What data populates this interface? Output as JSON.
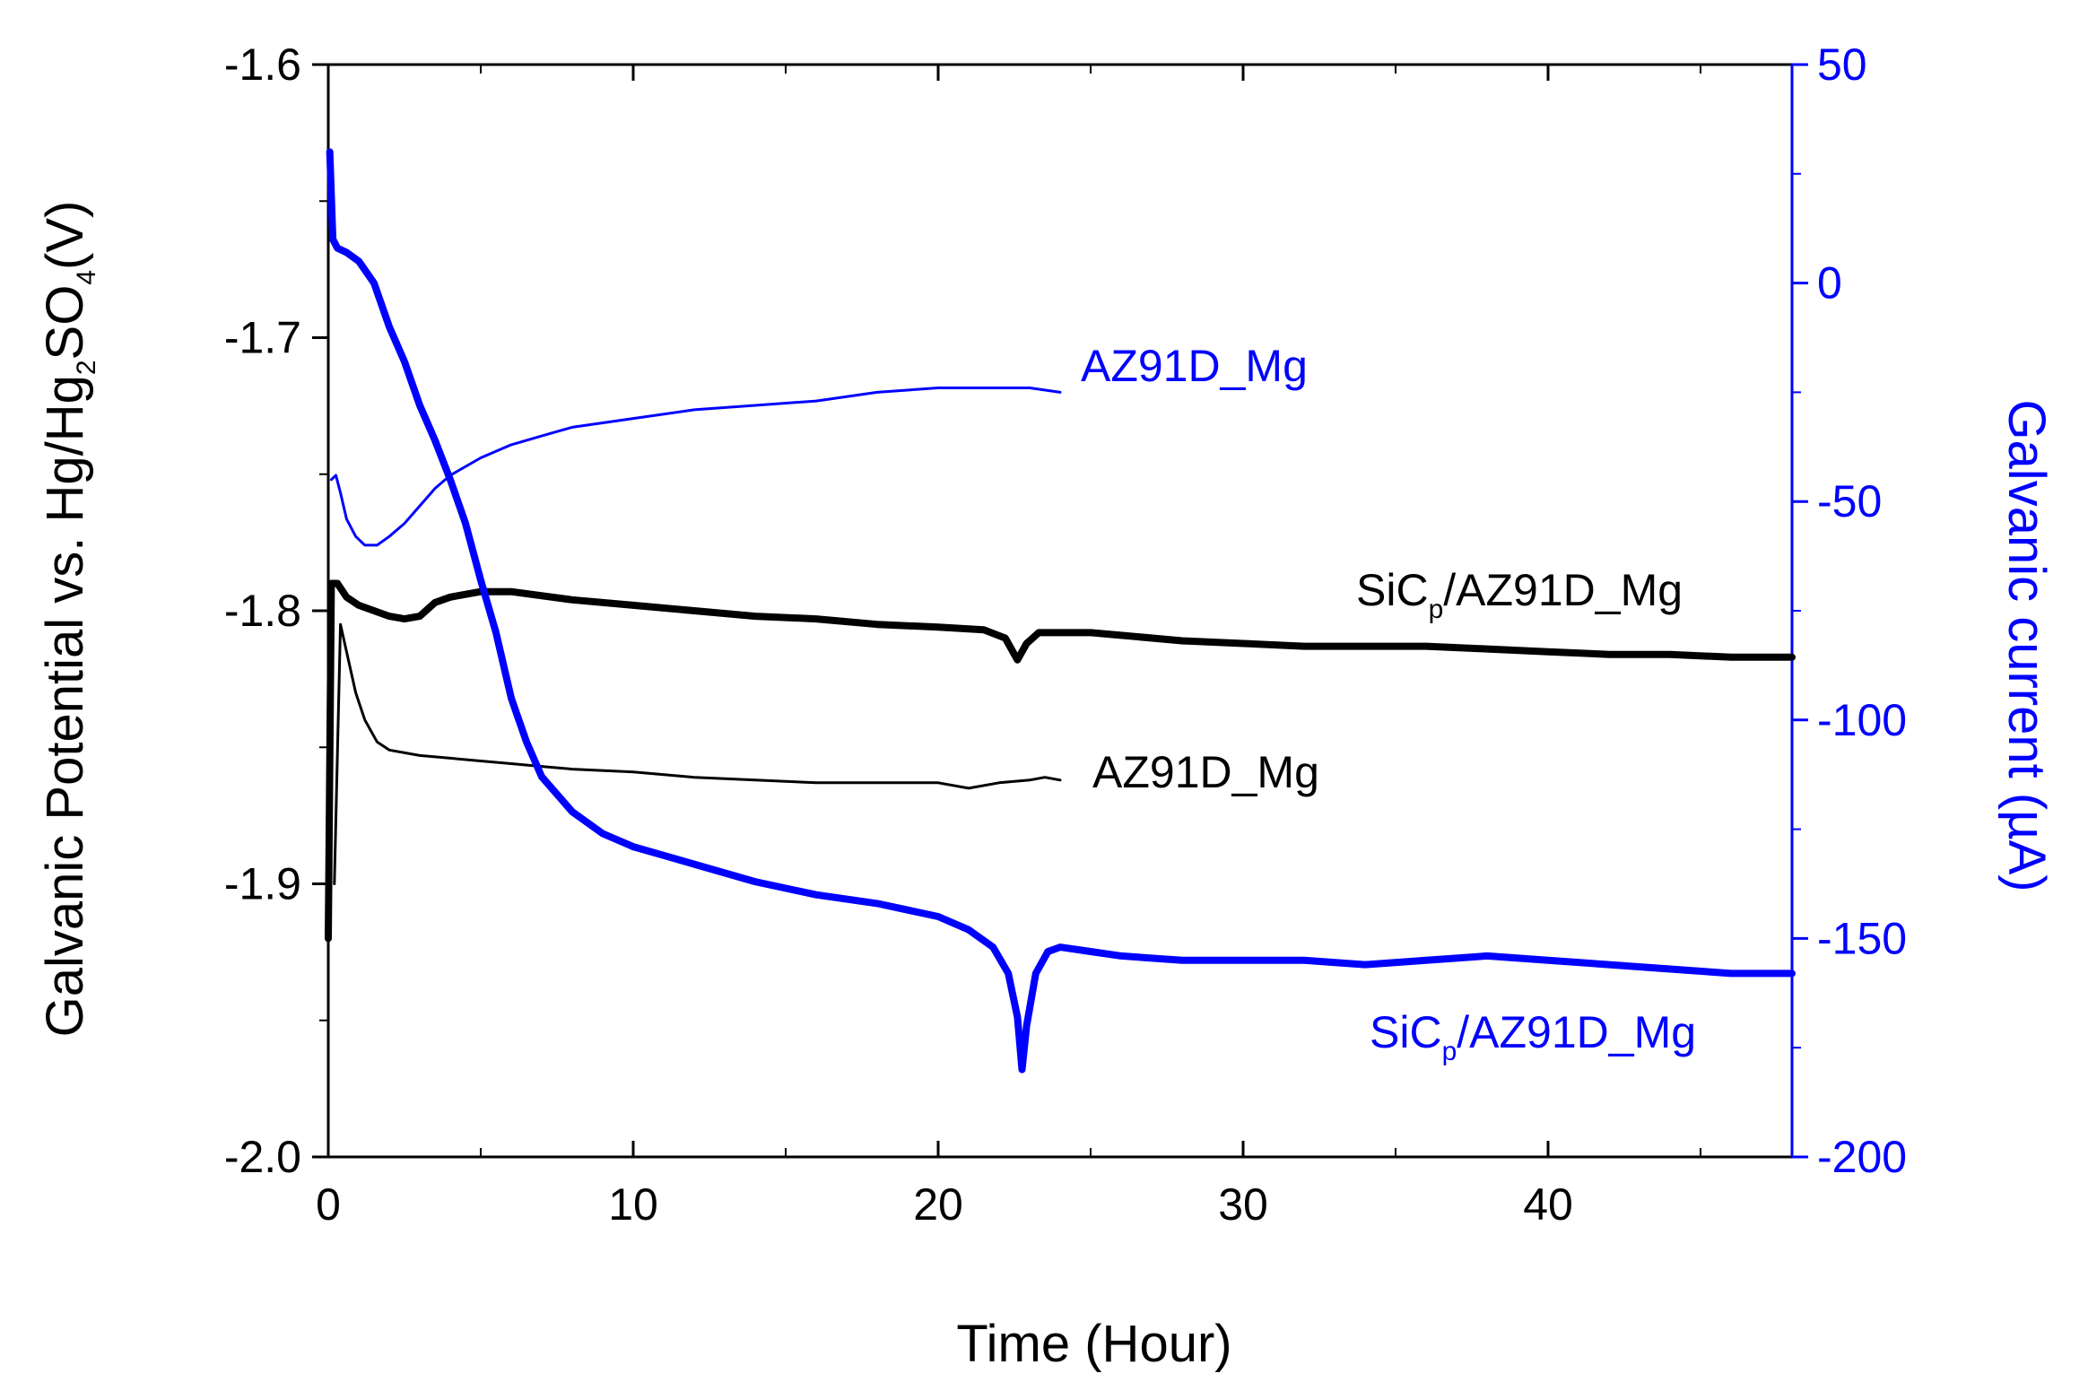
{
  "chart_data": {
    "type": "line",
    "title": "",
    "xlabel": "Time (Hour)",
    "ylabel_left": {
      "prefix": "Galvanic Potential vs. Hg/Hg",
      "sub1": "2",
      "mid": "SO",
      "sub2": "4",
      "suffix": "(V)"
    },
    "ylabel_right": "Galvanic current (µA)",
    "xlim": [
      0,
      48
    ],
    "ylim_left": [
      -2.0,
      -1.6
    ],
    "ylim_right": [
      -200,
      50
    ],
    "x_ticks": [
      "0",
      "10",
      "20",
      "30",
      "40"
    ],
    "y_left_ticks": [
      "-1.6",
      "-1.7",
      "-1.8",
      "-1.9",
      "-2.0"
    ],
    "y_right_ticks": [
      "50",
      "0",
      "-50",
      "-100",
      "-150",
      "-200"
    ],
    "colors": {
      "potential": "#000000",
      "current": "#0000ff"
    },
    "series": [
      {
        "name": "SiCp/AZ91D_Mg potential",
        "axis": "left",
        "color": "#000000",
        "stroke": "thick",
        "points": [
          [
            0,
            -1.92
          ],
          [
            0.1,
            -1.79
          ],
          [
            0.3,
            -1.79
          ],
          [
            0.6,
            -1.795
          ],
          [
            1,
            -1.798
          ],
          [
            1.5,
            -1.8
          ],
          [
            2,
            -1.802
          ],
          [
            2.5,
            -1.803
          ],
          [
            3,
            -1.802
          ],
          [
            3.5,
            -1.797
          ],
          [
            4,
            -1.795
          ],
          [
            5,
            -1.793
          ],
          [
            6,
            -1.793
          ],
          [
            8,
            -1.796
          ],
          [
            10,
            -1.798
          ],
          [
            12,
            -1.8
          ],
          [
            14,
            -1.802
          ],
          [
            16,
            -1.803
          ],
          [
            18,
            -1.805
          ],
          [
            20,
            -1.806
          ],
          [
            21.5,
            -1.807
          ],
          [
            22.2,
            -1.81
          ],
          [
            22.6,
            -1.818
          ],
          [
            22.9,
            -1.812
          ],
          [
            23.3,
            -1.808
          ],
          [
            24,
            -1.808
          ],
          [
            25,
            -1.808
          ],
          [
            26,
            -1.809
          ],
          [
            28,
            -1.811
          ],
          [
            30,
            -1.812
          ],
          [
            32,
            -1.813
          ],
          [
            34,
            -1.813
          ],
          [
            36,
            -1.813
          ],
          [
            38,
            -1.814
          ],
          [
            40,
            -1.815
          ],
          [
            42,
            -1.816
          ],
          [
            44,
            -1.816
          ],
          [
            46,
            -1.817
          ],
          [
            48,
            -1.817
          ]
        ]
      },
      {
        "name": "AZ91D_Mg potential",
        "axis": "left",
        "color": "#000000",
        "stroke": "thin",
        "points": [
          [
            0.2,
            -1.9
          ],
          [
            0.4,
            -1.805
          ],
          [
            0.6,
            -1.815
          ],
          [
            0.9,
            -1.83
          ],
          [
            1.2,
            -1.84
          ],
          [
            1.6,
            -1.848
          ],
          [
            2,
            -1.851
          ],
          [
            3,
            -1.853
          ],
          [
            4,
            -1.854
          ],
          [
            5,
            -1.855
          ],
          [
            6,
            -1.856
          ],
          [
            7,
            -1.857
          ],
          [
            8,
            -1.858
          ],
          [
            10,
            -1.859
          ],
          [
            12,
            -1.861
          ],
          [
            14,
            -1.862
          ],
          [
            16,
            -1.863
          ],
          [
            18,
            -1.863
          ],
          [
            20,
            -1.863
          ],
          [
            21,
            -1.865
          ],
          [
            22,
            -1.863
          ],
          [
            23,
            -1.862
          ],
          [
            23.5,
            -1.861
          ],
          [
            24,
            -1.862
          ]
        ]
      },
      {
        "name": "AZ91D_Mg current",
        "axis": "right",
        "color": "#0000ff",
        "stroke": "thin",
        "points": [
          [
            0.1,
            -45
          ],
          [
            0.25,
            -44
          ],
          [
            0.4,
            -48
          ],
          [
            0.6,
            -54
          ],
          [
            0.9,
            -58
          ],
          [
            1.2,
            -60
          ],
          [
            1.6,
            -60
          ],
          [
            2,
            -58
          ],
          [
            2.5,
            -55
          ],
          [
            3,
            -51
          ],
          [
            3.5,
            -47
          ],
          [
            4,
            -44
          ],
          [
            5,
            -40
          ],
          [
            6,
            -37
          ],
          [
            7,
            -35
          ],
          [
            8,
            -33
          ],
          [
            10,
            -31
          ],
          [
            12,
            -29
          ],
          [
            14,
            -28
          ],
          [
            16,
            -27
          ],
          [
            18,
            -25
          ],
          [
            20,
            -24
          ],
          [
            22,
            -24
          ],
          [
            23,
            -24
          ],
          [
            24,
            -25
          ]
        ]
      },
      {
        "name": "SiCp/AZ91D_Mg current",
        "axis": "right",
        "color": "#0000ff",
        "stroke": "thick",
        "points": [
          [
            0.05,
            30
          ],
          [
            0.15,
            10
          ],
          [
            0.3,
            8
          ],
          [
            0.6,
            7
          ],
          [
            1,
            5
          ],
          [
            1.5,
            0
          ],
          [
            2,
            -10
          ],
          [
            2.5,
            -18
          ],
          [
            3,
            -28
          ],
          [
            3.5,
            -36
          ],
          [
            4,
            -45
          ],
          [
            4.5,
            -55
          ],
          [
            5,
            -68
          ],
          [
            5.5,
            -80
          ],
          [
            6,
            -95
          ],
          [
            6.5,
            -105
          ],
          [
            7,
            -113
          ],
          [
            8,
            -121
          ],
          [
            9,
            -126
          ],
          [
            10,
            -129
          ],
          [
            11,
            -131
          ],
          [
            12,
            -133
          ],
          [
            14,
            -137
          ],
          [
            16,
            -140
          ],
          [
            18,
            -142
          ],
          [
            20,
            -145
          ],
          [
            21,
            -148
          ],
          [
            21.8,
            -152
          ],
          [
            22.3,
            -158
          ],
          [
            22.6,
            -168
          ],
          [
            22.75,
            -180
          ],
          [
            22.9,
            -170
          ],
          [
            23.2,
            -158
          ],
          [
            23.6,
            -153
          ],
          [
            24,
            -152
          ],
          [
            25,
            -153
          ],
          [
            26,
            -154
          ],
          [
            28,
            -155
          ],
          [
            30,
            -155
          ],
          [
            32,
            -155
          ],
          [
            34,
            -156
          ],
          [
            36,
            -155
          ],
          [
            38,
            -154
          ],
          [
            40,
            -155
          ],
          [
            42,
            -156
          ],
          [
            44,
            -157
          ],
          [
            46,
            -158
          ],
          [
            48,
            -158
          ]
        ]
      }
    ],
    "annotations": [
      {
        "name": "label-az91d-current",
        "text": "AZ91D_Mg",
        "color": "#0000ff"
      },
      {
        "name": "label-sicp-potential",
        "base": "SiC",
        "sub": "p",
        "rest": "/AZ91D_Mg",
        "color": "#000000"
      },
      {
        "name": "label-az91d-potential",
        "text": "AZ91D_Mg",
        "color": "#000000"
      },
      {
        "name": "label-sicp-current",
        "base": "SiC",
        "sub": "p",
        "rest": "/AZ91D_Mg",
        "color": "#0000ff"
      }
    ]
  }
}
